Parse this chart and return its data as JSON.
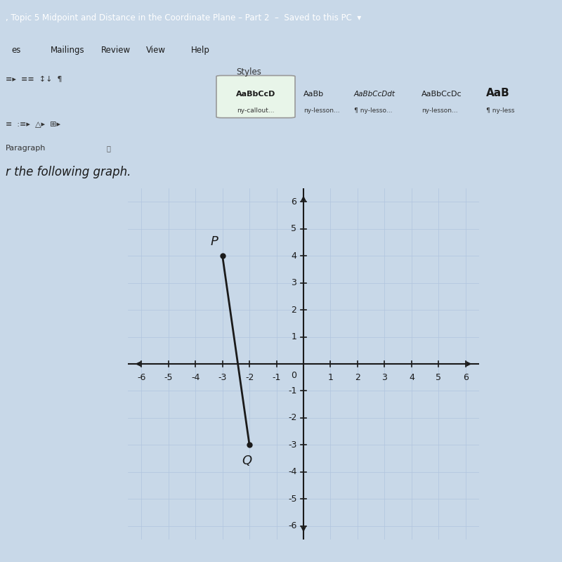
{
  "point_P": [
    -3,
    4
  ],
  "point_Q": [
    -2,
    -3
  ],
  "axis_min": -6,
  "axis_max": 6,
  "grid_color": "#b0c4de",
  "axis_color": "#1a1a1a",
  "line_color": "#1a1a1a",
  "point_color": "#1a1a1a",
  "label_P": "P",
  "label_Q": "Q",
  "label_fontsize": 13,
  "tick_fontsize": 9,
  "background_color": "#d6e4f0",
  "plot_bg_color": "#e8f0f8",
  "word_title": ", Topic 5 Midpoint and Distance in the Coordinate Plane – Part 2  –  Saved to this PC  ▾",
  "word_title_bg": "#2b5797",
  "word_title_color": "#ffffff",
  "menu_items": [
    "es",
    "Mailings",
    "Review",
    "View",
    "Help"
  ],
  "text_below": "r the following graph.",
  "styles_label": "Styles",
  "paragraph_label": "Paragraph"
}
